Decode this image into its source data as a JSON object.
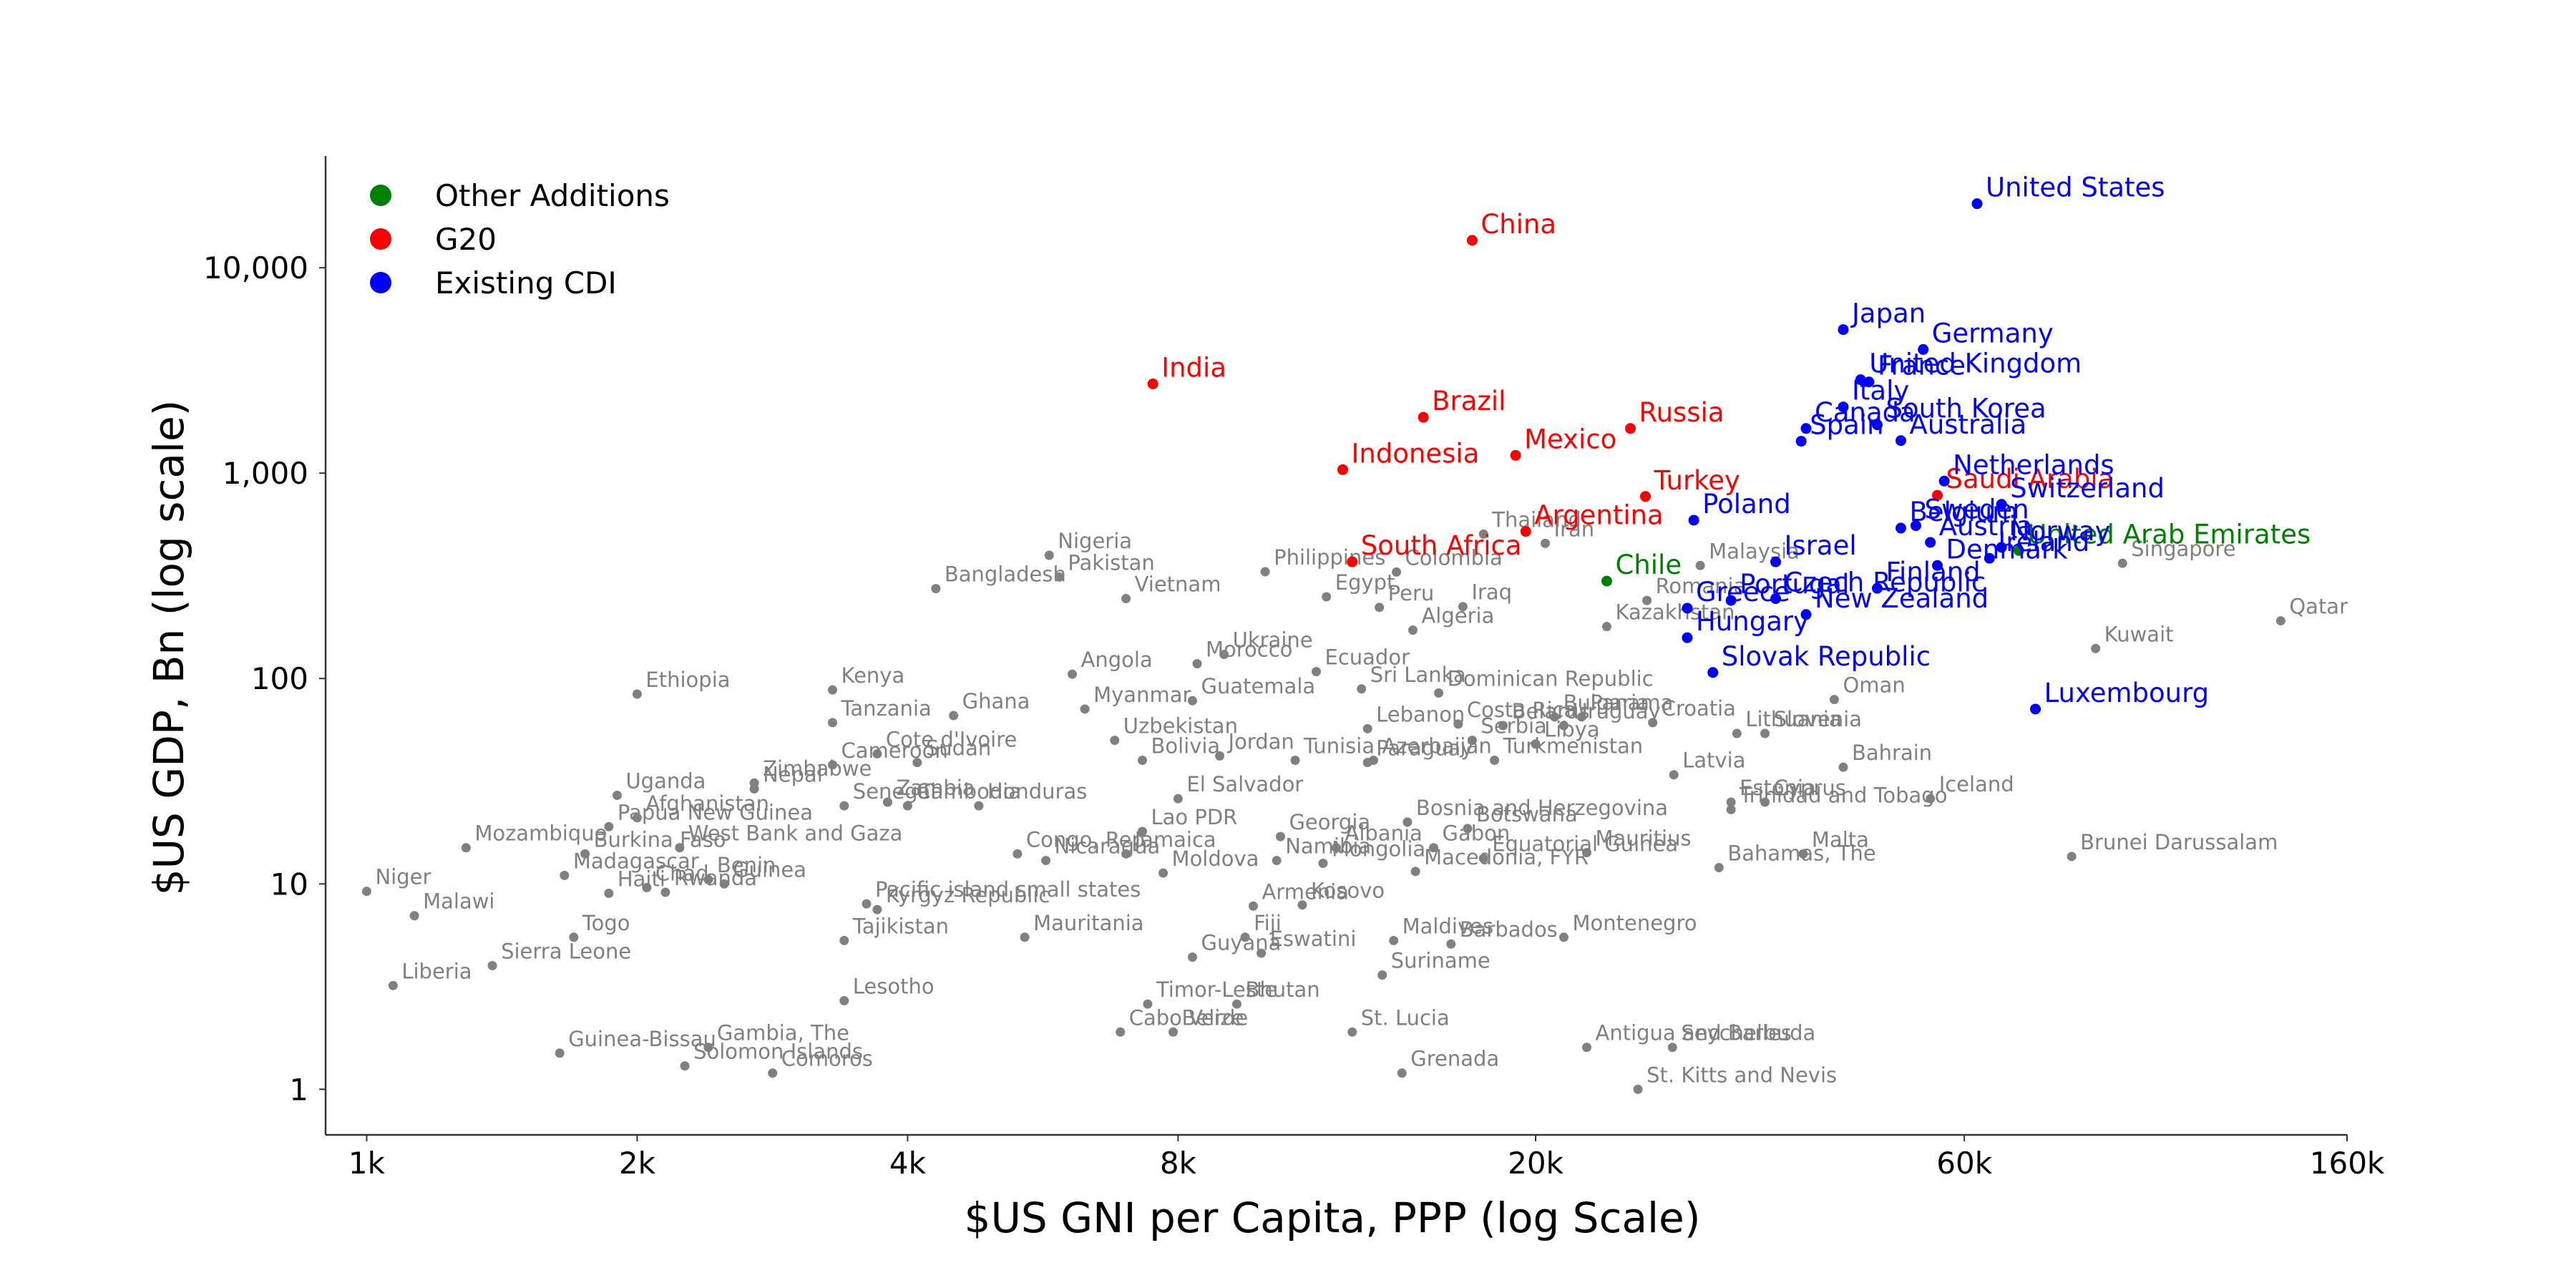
{
  "chart_data": {
    "type": "scatter",
    "title": "",
    "xlabel": "$US GNI per Capita, PPP (log Scale)",
    "ylabel": "$US GDP, Bn (log scale)",
    "x_scale": "log",
    "y_scale": "log",
    "xlim": [
      900,
      160000
    ],
    "ylim": [
      0.6,
      35000
    ],
    "x_ticks": [
      {
        "value": 1000,
        "label": "1k"
      },
      {
        "value": 2000,
        "label": "2k"
      },
      {
        "value": 4000,
        "label": "4k"
      },
      {
        "value": 8000,
        "label": "8k"
      },
      {
        "value": 20000,
        "label": "20k"
      },
      {
        "value": 60000,
        "label": "60k"
      },
      {
        "value": 160000,
        "label": "160k"
      }
    ],
    "y_ticks": [
      {
        "value": 1,
        "label": "1"
      },
      {
        "value": 10,
        "label": "10"
      },
      {
        "value": 100,
        "label": "100"
      },
      {
        "value": 1000,
        "label": "1,000"
      },
      {
        "value": 10000,
        "label": "10,000"
      }
    ],
    "grid": false,
    "legend_position": "top-left",
    "legend": [
      {
        "name": "Other Additions",
        "color": "#008000"
      },
      {
        "name": "G20",
        "color": "#ff0000"
      },
      {
        "name": "Existing CDI",
        "color": "#0000ff"
      }
    ],
    "colors": {
      "Other Additions": "#008000",
      "G20": "#ff0000",
      "Existing CDI": "#0000ff",
      "Other": "#808080"
    },
    "series": [
      {
        "name": "Existing CDI",
        "points": [
          {
            "label": "United States",
            "x": 62000,
            "y": 20500
          },
          {
            "label": "Japan",
            "x": 44000,
            "y": 5000
          },
          {
            "label": "Germany",
            "x": 54000,
            "y": 4000
          },
          {
            "label": "United Kingdom",
            "x": 46000,
            "y": 2850
          },
          {
            "label": "France",
            "x": 47000,
            "y": 2780
          },
          {
            "label": "Italy",
            "x": 44000,
            "y": 2100
          },
          {
            "label": "South Korea",
            "x": 48000,
            "y": 1720
          },
          {
            "label": "Canada",
            "x": 40000,
            "y": 1650
          },
          {
            "label": "Spain",
            "x": 39500,
            "y": 1430
          },
          {
            "label": "Australia",
            "x": 51000,
            "y": 1440
          },
          {
            "label": "Netherlands",
            "x": 57000,
            "y": 915
          },
          {
            "label": "Switzerland",
            "x": 66000,
            "y": 705
          },
          {
            "label": "Poland",
            "x": 30000,
            "y": 590
          },
          {
            "label": "Sweden",
            "x": 53000,
            "y": 555
          },
          {
            "label": "Belgium",
            "x": 51000,
            "y": 540
          },
          {
            "label": "Austria",
            "x": 55000,
            "y": 460
          },
          {
            "label": "Norway",
            "x": 66000,
            "y": 435
          },
          {
            "label": "Ireland",
            "x": 64000,
            "y": 385
          },
          {
            "label": "Denmark",
            "x": 56000,
            "y": 355
          },
          {
            "label": "Israel",
            "x": 37000,
            "y": 370
          },
          {
            "label": "Portugal",
            "x": 33000,
            "y": 240
          },
          {
            "label": "Czech Republic",
            "x": 37000,
            "y": 245
          },
          {
            "label": "Finland",
            "x": 48000,
            "y": 275
          },
          {
            "label": "Greece",
            "x": 29500,
            "y": 220
          },
          {
            "label": "New Zealand",
            "x": 40000,
            "y": 205
          },
          {
            "label": "Hungary",
            "x": 29500,
            "y": 158
          },
          {
            "label": "Slovak Republic",
            "x": 31500,
            "y": 107
          },
          {
            "label": "Luxembourg",
            "x": 72000,
            "y": 71
          }
        ]
      },
      {
        "name": "G20",
        "points": [
          {
            "label": "China",
            "x": 17000,
            "y": 13600
          },
          {
            "label": "India",
            "x": 7500,
            "y": 2720
          },
          {
            "label": "Brazil",
            "x": 15000,
            "y": 1870
          },
          {
            "label": "Russia",
            "x": 25500,
            "y": 1650
          },
          {
            "label": "Indonesia",
            "x": 12200,
            "y": 1040
          },
          {
            "label": "Mexico",
            "x": 19000,
            "y": 1220
          },
          {
            "label": "Turkey",
            "x": 26500,
            "y": 770
          },
          {
            "label": "Saudi Arabia",
            "x": 56000,
            "y": 780
          },
          {
            "label": "Argentina",
            "x": 19500,
            "y": 520
          },
          {
            "label": "South Africa",
            "x": 12500,
            "y": 370
          }
        ]
      },
      {
        "name": "Other Additions",
        "points": [
          {
            "label": "United Arab Emirates",
            "x": 69000,
            "y": 420
          },
          {
            "label": "Chile",
            "x": 24000,
            "y": 298
          }
        ]
      },
      {
        "name": "Other",
        "points": [
          {
            "label": "Thailand",
            "x": 17500,
            "y": 505
          },
          {
            "label": "Iran",
            "x": 20500,
            "y": 455
          },
          {
            "label": "Malaysia",
            "x": 30500,
            "y": 355
          },
          {
            "label": "Colombia",
            "x": 14000,
            "y": 330
          },
          {
            "label": "Nigeria",
            "x": 5750,
            "y": 398
          },
          {
            "label": "Pakistan",
            "x": 5900,
            "y": 312
          },
          {
            "label": "Bangladesh",
            "x": 4300,
            "y": 274
          },
          {
            "label": "Philippines",
            "x": 10000,
            "y": 331
          },
          {
            "label": "Peru",
            "x": 13400,
            "y": 222
          },
          {
            "label": "Egypt",
            "x": 11700,
            "y": 250
          },
          {
            "label": "Vietnam",
            "x": 7000,
            "y": 245
          },
          {
            "label": "Iraq",
            "x": 16600,
            "y": 224
          },
          {
            "label": "Romania",
            "x": 26600,
            "y": 240
          },
          {
            "label": "Kazakhstan",
            "x": 24000,
            "y": 179
          },
          {
            "label": "Algeria",
            "x": 14600,
            "y": 172
          },
          {
            "label": "Kuwait",
            "x": 84000,
            "y": 140
          },
          {
            "label": "Qatar",
            "x": 135000,
            "y": 191
          },
          {
            "label": "Singapore",
            "x": 90000,
            "y": 364
          },
          {
            "label": "Ukraine",
            "x": 9000,
            "y": 131
          },
          {
            "label": "Angola",
            "x": 6100,
            "y": 105
          },
          {
            "label": "Morocco",
            "x": 8400,
            "y": 118
          },
          {
            "label": "Ecuador",
            "x": 11400,
            "y": 108
          },
          {
            "label": "Ethiopia",
            "x": 2000,
            "y": 84
          },
          {
            "label": "Kenya",
            "x": 3300,
            "y": 88
          },
          {
            "label": "Myanmar",
            "x": 6300,
            "y": 71
          },
          {
            "label": "Sri Lanka",
            "x": 12800,
            "y": 89
          },
          {
            "label": "Dominican Republic",
            "x": 15600,
            "y": 85
          },
          {
            "label": "Oman",
            "x": 43000,
            "y": 79
          },
          {
            "label": "Guatemala",
            "x": 8300,
            "y": 78
          },
          {
            "label": "Tanzania",
            "x": 3300,
            "y": 61
          },
          {
            "label": "Ghana",
            "x": 4500,
            "y": 66
          },
          {
            "label": "Bulgaria",
            "x": 21000,
            "y": 65
          },
          {
            "label": "Panama",
            "x": 22500,
            "y": 65
          },
          {
            "label": "Croatia",
            "x": 27000,
            "y": 61
          },
          {
            "label": "Cameroon",
            "x": 3300,
            "y": 38
          },
          {
            "label": "Cote d'Ivoire",
            "x": 3700,
            "y": 43
          },
          {
            "label": "Uzbekistan",
            "x": 6800,
            "y": 50
          },
          {
            "label": "Lebanon",
            "x": 13000,
            "y": 57
          },
          {
            "label": "Costa Rica",
            "x": 16400,
            "y": 60
          },
          {
            "label": "Serbia",
            "x": 17000,
            "y": 50
          },
          {
            "label": "Belarus",
            "x": 18400,
            "y": 59
          },
          {
            "label": "Uruguay",
            "x": 21500,
            "y": 59
          },
          {
            "label": "Slovenia",
            "x": 36000,
            "y": 54
          },
          {
            "label": "Lithuania",
            "x": 33500,
            "y": 54
          },
          {
            "label": "Nepal",
            "x": 2700,
            "y": 29
          },
          {
            "label": "Sudan",
            "x": 4100,
            "y": 39
          },
          {
            "label": "Bolivia",
            "x": 7300,
            "y": 40
          },
          {
            "label": "Tunisia",
            "x": 10800,
            "y": 40
          },
          {
            "label": "Azerbaijan",
            "x": 13200,
            "y": 40
          },
          {
            "label": "Libya",
            "x": 20000,
            "y": 48
          },
          {
            "label": "Bahrain",
            "x": 44000,
            "y": 37
          },
          {
            "label": "Latvia",
            "x": 28500,
            "y": 34
          },
          {
            "label": "Turkmenistan",
            "x": 18000,
            "y": 40
          },
          {
            "label": "Afghanistan",
            "x": 2000,
            "y": 21
          },
          {
            "label": "Uganda",
            "x": 1900,
            "y": 27
          },
          {
            "label": "Zimbabwe",
            "x": 2700,
            "y": 31
          },
          {
            "label": "Zambia",
            "x": 3800,
            "y": 25
          },
          {
            "label": "Cambodia",
            "x": 4000,
            "y": 24
          },
          {
            "label": "Jordan",
            "x": 8900,
            "y": 42
          },
          {
            "label": "El Salvador",
            "x": 8000,
            "y": 26
          },
          {
            "label": "Paraguay",
            "x": 13000,
            "y": 39
          },
          {
            "label": "Estonia",
            "x": 33000,
            "y": 25
          },
          {
            "label": "Cyprus",
            "x": 36000,
            "y": 25
          },
          {
            "label": "Iceland",
            "x": 55000,
            "y": 26
          },
          {
            "label": "Mozambique",
            "x": 1290,
            "y": 15
          },
          {
            "label": "Papua New Guinea",
            "x": 1860,
            "y": 19
          },
          {
            "label": "Burkina Faso",
            "x": 1750,
            "y": 14
          },
          {
            "label": "West Bank and Gaza",
            "x": 2230,
            "y": 15
          },
          {
            "label": "Senegal",
            "x": 3400,
            "y": 24
          },
          {
            "label": "Honduras",
            "x": 4800,
            "y": 24
          },
          {
            "label": "Lao PDR",
            "x": 7300,
            "y": 18
          },
          {
            "label": "Georgia",
            "x": 10400,
            "y": 17
          },
          {
            "label": "Albania",
            "x": 12000,
            "y": 15
          },
          {
            "label": "Bosnia and Herzegovina",
            "x": 14400,
            "y": 20
          },
          {
            "label": "Trinidad and Tobago",
            "x": 33000,
            "y": 23
          },
          {
            "label": "Malta",
            "x": 39700,
            "y": 14
          },
          {
            "label": "Brunei Darussalam",
            "x": 79000,
            "y": 13.6
          },
          {
            "label": "Niger",
            "x": 1000,
            "y": 9.2
          },
          {
            "label": "Madagascar",
            "x": 1660,
            "y": 11
          },
          {
            "label": "Chad",
            "x": 2050,
            "y": 9.6
          },
          {
            "label": "Malawi",
            "x": 1130,
            "y": 7
          },
          {
            "label": "Guinea",
            "x": 2500,
            "y": 10
          },
          {
            "label": "Benin",
            "x": 2400,
            "y": 10.5
          },
          {
            "label": "Haiti",
            "x": 1860,
            "y": 9
          },
          {
            "label": "Congo, Rep.",
            "x": 5300,
            "y": 14
          },
          {
            "label": "Nicaragua",
            "x": 5700,
            "y": 13
          },
          {
            "label": "Jamaica",
            "x": 7000,
            "y": 14
          },
          {
            "label": "Moldova",
            "x": 7700,
            "y": 11.3
          },
          {
            "label": "Namibia",
            "x": 10300,
            "y": 13
          },
          {
            "label": "Mongolia",
            "x": 11600,
            "y": 12.6
          },
          {
            "label": "Gabon",
            "x": 15400,
            "y": 15
          },
          {
            "label": "Botswana",
            "x": 16800,
            "y": 18.6
          },
          {
            "label": "Mauritius",
            "x": 22800,
            "y": 14.2
          },
          {
            "label": "Equatorial Guinea",
            "x": 17500,
            "y": 13.3
          },
          {
            "label": "Bahamas, The",
            "x": 32000,
            "y": 12
          },
          {
            "label": "Pacific island small states",
            "x": 3600,
            "y": 8
          },
          {
            "label": "Rwanda",
            "x": 2150,
            "y": 9.1
          },
          {
            "label": "Togo",
            "x": 1700,
            "y": 5.5
          },
          {
            "label": "Kyrgyz Republic",
            "x": 3700,
            "y": 7.5
          },
          {
            "label": "Tajikistan",
            "x": 3400,
            "y": 5.3
          },
          {
            "label": "Armenia",
            "x": 9700,
            "y": 7.8
          },
          {
            "label": "Kosovo",
            "x": 11000,
            "y": 7.9
          },
          {
            "label": "Macedonia, FYR",
            "x": 14700,
            "y": 11.5
          },
          {
            "label": "Montenegro",
            "x": 21500,
            "y": 5.5
          },
          {
            "label": "Fiji",
            "x": 9500,
            "y": 5.5
          },
          {
            "label": "Maldives",
            "x": 13900,
            "y": 5.3
          },
          {
            "label": "Barbados",
            "x": 16100,
            "y": 5.1
          },
          {
            "label": "Sierra Leone",
            "x": 1380,
            "y": 4
          },
          {
            "label": "Mauritania",
            "x": 5400,
            "y": 5.5
          },
          {
            "label": "Guyana",
            "x": 8300,
            "y": 4.4
          },
          {
            "label": "Eswatini",
            "x": 9900,
            "y": 4.6
          },
          {
            "label": "Suriname",
            "x": 13500,
            "y": 3.6
          },
          {
            "label": "Liberia",
            "x": 1070,
            "y": 3.2
          },
          {
            "label": "Lesotho",
            "x": 3400,
            "y": 2.7
          },
          {
            "label": "Timor-Leste",
            "x": 7400,
            "y": 2.6
          },
          {
            "label": "Bhutan",
            "x": 9300,
            "y": 2.6
          },
          {
            "label": "Cabo Verde",
            "x": 6900,
            "y": 1.9
          },
          {
            "label": "Belize",
            "x": 7900,
            "y": 1.9
          },
          {
            "label": "St. Lucia",
            "x": 12500,
            "y": 1.9
          },
          {
            "label": "Antigua and Barbuda",
            "x": 22800,
            "y": 1.6
          },
          {
            "label": "Seychelles",
            "x": 28400,
            "y": 1.6
          },
          {
            "label": "Gambia, The",
            "x": 2400,
            "y": 1.6
          },
          {
            "label": "Guinea-Bissau",
            "x": 1640,
            "y": 1.5
          },
          {
            "label": "Solomon Islands",
            "x": 2260,
            "y": 1.3
          },
          {
            "label": "Grenada",
            "x": 14200,
            "y": 1.2
          },
          {
            "label": "Comoros",
            "x": 2830,
            "y": 1.2
          },
          {
            "label": "St. Kitts and Nevis",
            "x": 26000,
            "y": 1
          }
        ]
      }
    ]
  }
}
